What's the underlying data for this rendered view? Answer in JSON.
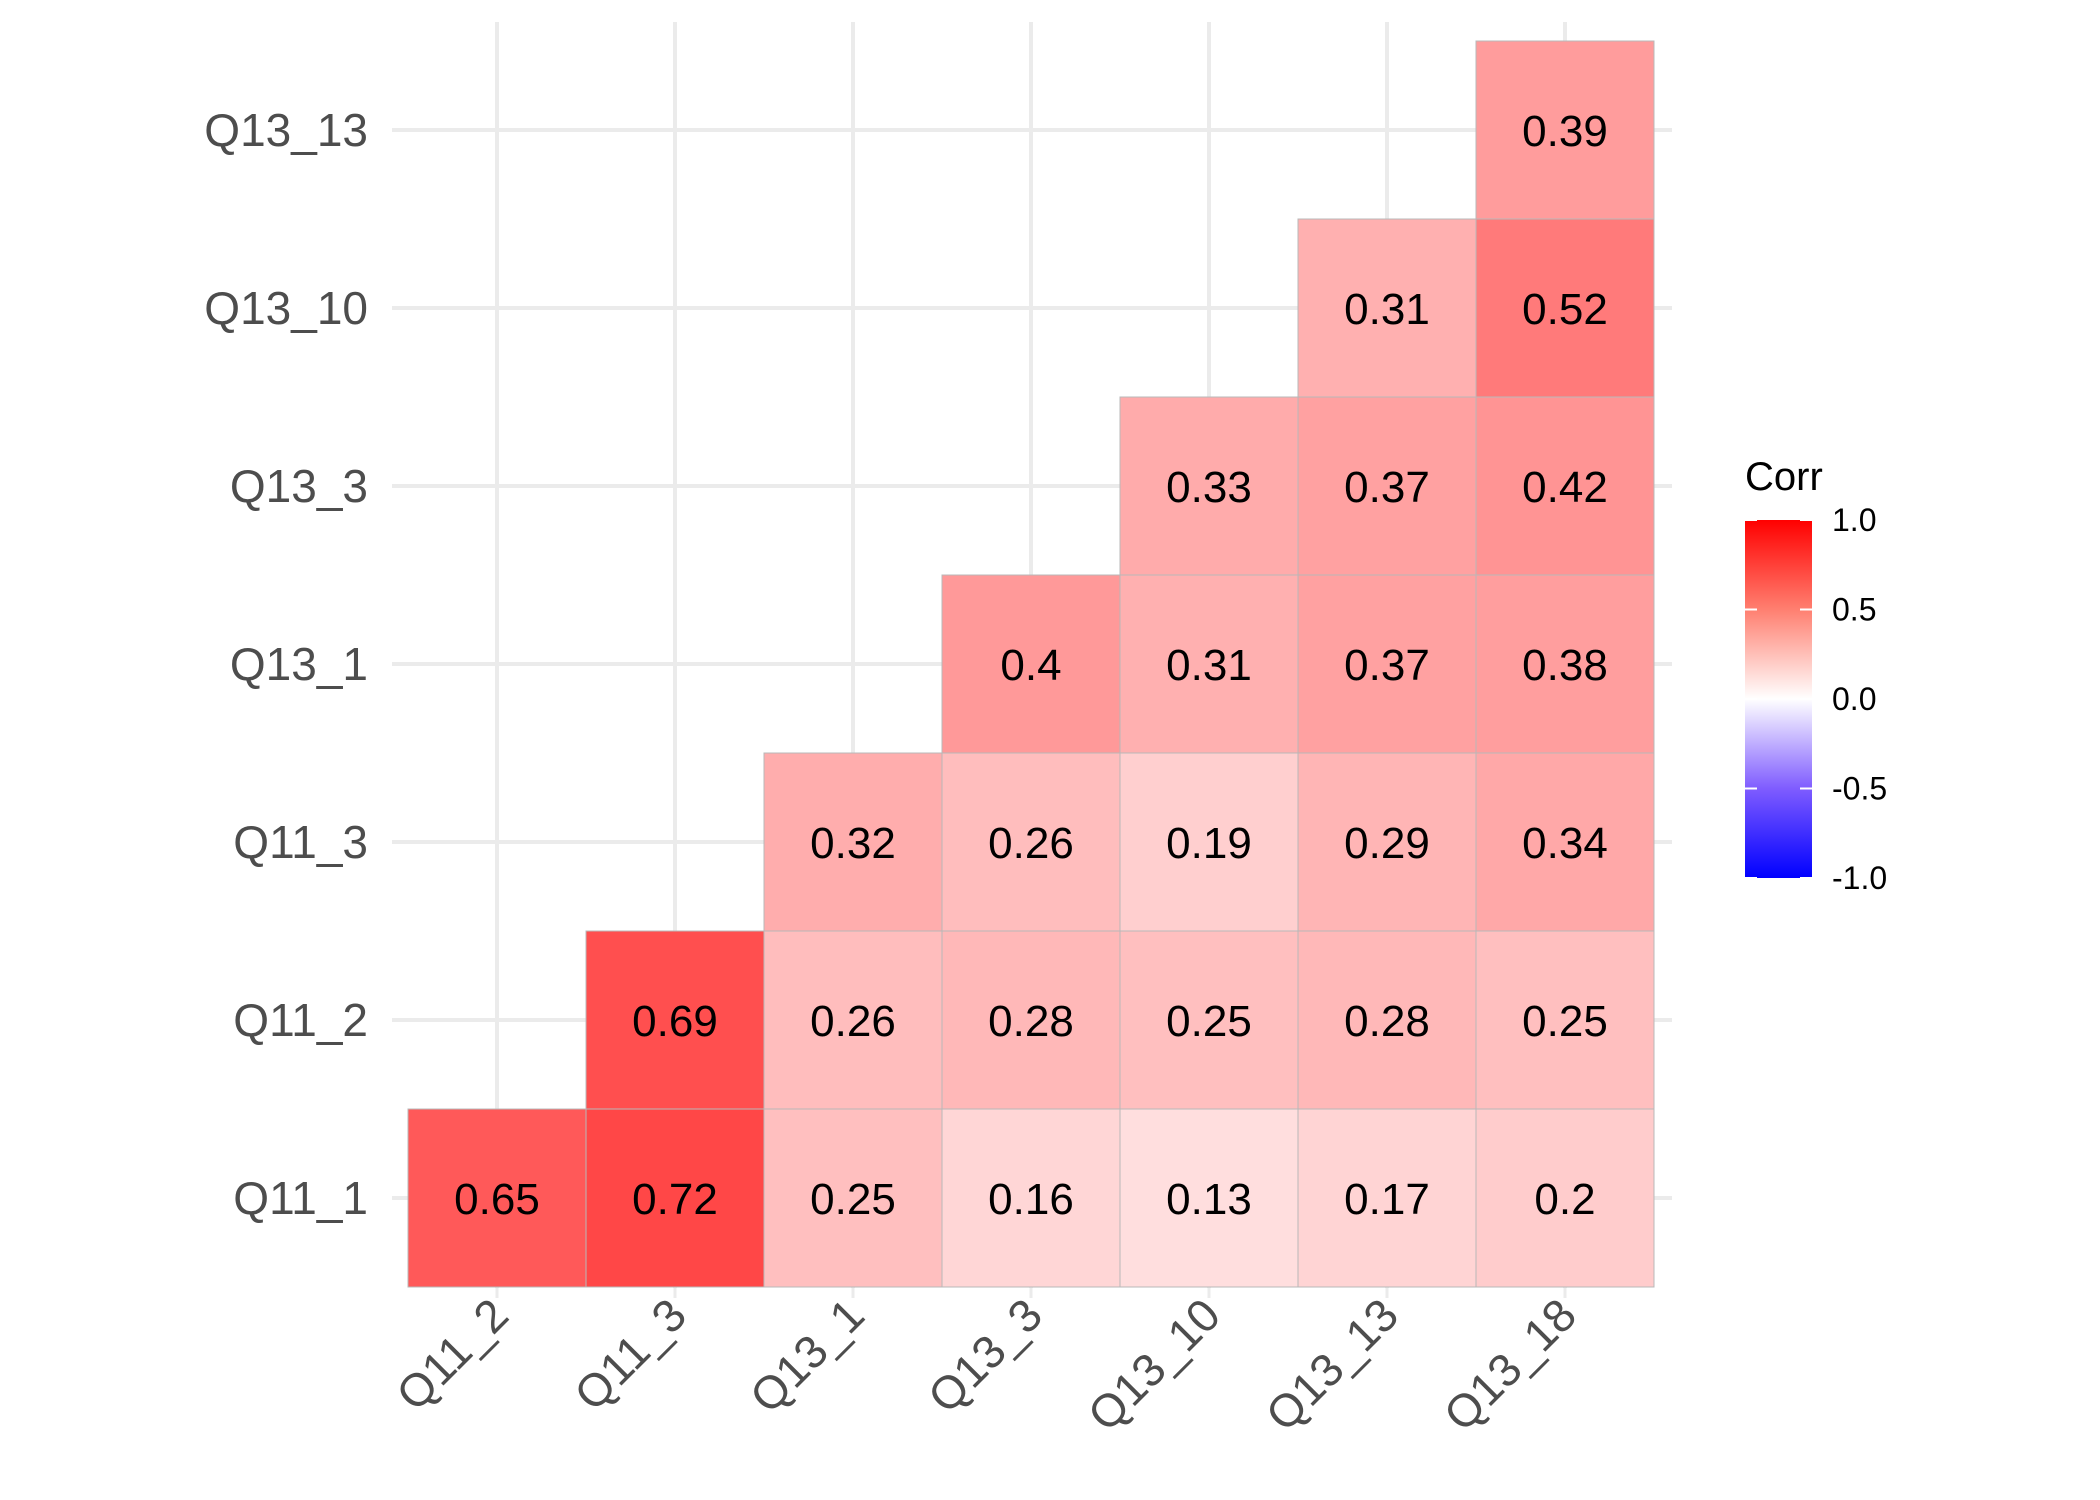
{
  "chart_data": {
    "type": "heatmap",
    "x_categories": [
      "Q11_2",
      "Q11_3",
      "Q13_1",
      "Q13_3",
      "Q13_10",
      "Q13_13",
      "Q13_18"
    ],
    "y_categories": [
      "Q11_1",
      "Q11_2",
      "Q11_3",
      "Q13_1",
      "Q13_3",
      "Q13_10",
      "Q13_13"
    ],
    "cells": [
      {
        "x": "Q11_2",
        "y": "Q11_1",
        "value": 0.65,
        "label": "0.65"
      },
      {
        "x": "Q11_3",
        "y": "Q11_1",
        "value": 0.72,
        "label": "0.72"
      },
      {
        "x": "Q13_1",
        "y": "Q11_1",
        "value": 0.25,
        "label": "0.25"
      },
      {
        "x": "Q13_3",
        "y": "Q11_1",
        "value": 0.16,
        "label": "0.16"
      },
      {
        "x": "Q13_10",
        "y": "Q11_1",
        "value": 0.13,
        "label": "0.13"
      },
      {
        "x": "Q13_13",
        "y": "Q11_1",
        "value": 0.17,
        "label": "0.17"
      },
      {
        "x": "Q13_18",
        "y": "Q11_1",
        "value": 0.2,
        "label": "0.2"
      },
      {
        "x": "Q11_3",
        "y": "Q11_2",
        "value": 0.69,
        "label": "0.69"
      },
      {
        "x": "Q13_1",
        "y": "Q11_2",
        "value": 0.26,
        "label": "0.26"
      },
      {
        "x": "Q13_3",
        "y": "Q11_2",
        "value": 0.28,
        "label": "0.28"
      },
      {
        "x": "Q13_10",
        "y": "Q11_2",
        "value": 0.25,
        "label": "0.25"
      },
      {
        "x": "Q13_13",
        "y": "Q11_2",
        "value": 0.28,
        "label": "0.28"
      },
      {
        "x": "Q13_18",
        "y": "Q11_2",
        "value": 0.25,
        "label": "0.25"
      },
      {
        "x": "Q13_1",
        "y": "Q11_3",
        "value": 0.32,
        "label": "0.32"
      },
      {
        "x": "Q13_3",
        "y": "Q11_3",
        "value": 0.26,
        "label": "0.26"
      },
      {
        "x": "Q13_10",
        "y": "Q11_3",
        "value": 0.19,
        "label": "0.19"
      },
      {
        "x": "Q13_13",
        "y": "Q11_3",
        "value": 0.29,
        "label": "0.29"
      },
      {
        "x": "Q13_18",
        "y": "Q11_3",
        "value": 0.34,
        "label": "0.34"
      },
      {
        "x": "Q13_3",
        "y": "Q13_1",
        "value": 0.4,
        "label": "0.4"
      },
      {
        "x": "Q13_10",
        "y": "Q13_1",
        "value": 0.31,
        "label": "0.31"
      },
      {
        "x": "Q13_13",
        "y": "Q13_1",
        "value": 0.37,
        "label": "0.37"
      },
      {
        "x": "Q13_18",
        "y": "Q13_1",
        "value": 0.38,
        "label": "0.38"
      },
      {
        "x": "Q13_10",
        "y": "Q13_3",
        "value": 0.33,
        "label": "0.33"
      },
      {
        "x": "Q13_13",
        "y": "Q13_3",
        "value": 0.37,
        "label": "0.37"
      },
      {
        "x": "Q13_18",
        "y": "Q13_3",
        "value": 0.42,
        "label": "0.42"
      },
      {
        "x": "Q13_13",
        "y": "Q13_10",
        "value": 0.31,
        "label": "0.31"
      },
      {
        "x": "Q13_18",
        "y": "Q13_10",
        "value": 0.52,
        "label": "0.52"
      },
      {
        "x": "Q13_18",
        "y": "Q13_13",
        "value": 0.39,
        "label": "0.39"
      }
    ],
    "legend": {
      "title": "Corr",
      "position": "right",
      "ticks": [
        1.0,
        0.5,
        0.0,
        -0.5,
        -1.0
      ],
      "tick_labels": [
        "1.0",
        "0.5",
        "0.0",
        "-0.5",
        "-1.0"
      ],
      "range": [
        -1,
        1
      ]
    },
    "colors": {
      "low": "#0000ff",
      "mid": "#ffffff",
      "high": "#ff0000"
    },
    "grid": true,
    "title": "",
    "xlabel": "",
    "ylabel": ""
  }
}
